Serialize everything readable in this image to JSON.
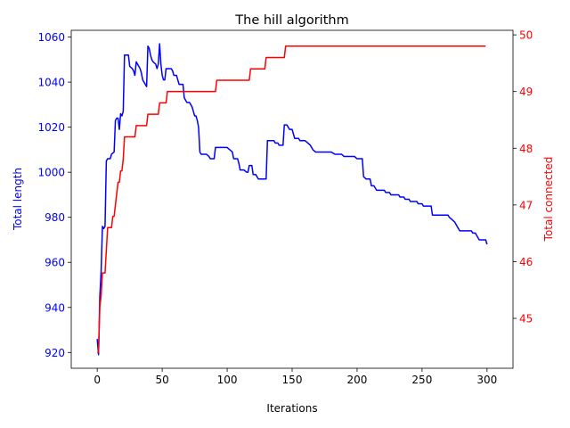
{
  "chart_data": {
    "type": "line",
    "title": "The hill algorithm",
    "xlabel": "Iterations",
    "xlim": [
      -20,
      320
    ],
    "xticks": [
      0,
      50,
      100,
      150,
      200,
      250,
      300
    ],
    "grid": false,
    "axes": {
      "left": {
        "label": "Total length",
        "color": "#0000ff",
        "ylim": [
          913,
          1063
        ],
        "ticks": [
          920,
          940,
          960,
          980,
          1000,
          1020,
          1040,
          1060
        ]
      },
      "right": {
        "label": "Total connected",
        "color": "#ff0000",
        "ylim": [
          44.12,
          50.08
        ],
        "ticks": [
          45,
          46,
          47,
          48,
          49,
          50
        ]
      }
    },
    "series": [
      {
        "axis": "left",
        "color": "#0000ff",
        "points": [
          [
            0,
            926
          ],
          [
            1,
            919
          ],
          [
            2,
            945
          ],
          [
            3,
            956
          ],
          [
            4,
            976
          ],
          [
            5,
            975
          ],
          [
            6,
            976
          ],
          [
            7,
            1005
          ],
          [
            8,
            1006
          ],
          [
            10,
            1006
          ],
          [
            11,
            1008
          ],
          [
            13,
            1009
          ],
          [
            14,
            1023
          ],
          [
            15,
            1024
          ],
          [
            16,
            1024
          ],
          [
            17,
            1019
          ],
          [
            18,
            1026
          ],
          [
            19,
            1025
          ],
          [
            20,
            1027
          ],
          [
            21,
            1052
          ],
          [
            22,
            1052
          ],
          [
            24,
            1052
          ],
          [
            25,
            1047
          ],
          [
            27,
            1046
          ],
          [
            28,
            1045
          ],
          [
            29,
            1043
          ],
          [
            30,
            1049
          ],
          [
            31,
            1048
          ],
          [
            32,
            1047
          ],
          [
            33,
            1046
          ],
          [
            34,
            1044
          ],
          [
            35,
            1041
          ],
          [
            36,
            1040
          ],
          [
            37,
            1039
          ],
          [
            38,
            1038
          ],
          [
            39,
            1056
          ],
          [
            40,
            1055
          ],
          [
            41,
            1052
          ],
          [
            42,
            1050
          ],
          [
            43,
            1049
          ],
          [
            45,
            1048
          ],
          [
            46,
            1046
          ],
          [
            47,
            1048
          ],
          [
            48,
            1057
          ],
          [
            49,
            1048
          ],
          [
            50,
            1043
          ],
          [
            51,
            1041
          ],
          [
            52,
            1041
          ],
          [
            53,
            1046
          ],
          [
            55,
            1046
          ],
          [
            57,
            1046
          ],
          [
            58,
            1045
          ],
          [
            59,
            1043
          ],
          [
            61,
            1043
          ],
          [
            62,
            1041
          ],
          [
            63,
            1039
          ],
          [
            66,
            1039
          ],
          [
            67,
            1033
          ],
          [
            68,
            1032
          ],
          [
            69,
            1031
          ],
          [
            71,
            1031
          ],
          [
            72,
            1030
          ],
          [
            73,
            1029
          ],
          [
            74,
            1027
          ],
          [
            75,
            1025
          ],
          [
            76,
            1025
          ],
          [
            77,
            1023
          ],
          [
            78,
            1020
          ],
          [
            79,
            1009
          ],
          [
            80,
            1008
          ],
          [
            82,
            1008
          ],
          [
            84,
            1008
          ],
          [
            86,
            1007
          ],
          [
            87,
            1006
          ],
          [
            90,
            1006
          ],
          [
            91,
            1011
          ],
          [
            100,
            1011
          ],
          [
            102,
            1010
          ],
          [
            104,
            1009
          ],
          [
            105,
            1006
          ],
          [
            108,
            1006
          ],
          [
            109,
            1004
          ],
          [
            110,
            1001
          ],
          [
            113,
            1001
          ],
          [
            115,
            1000
          ],
          [
            116,
            1000
          ],
          [
            117,
            1003
          ],
          [
            119,
            1003
          ],
          [
            120,
            999
          ],
          [
            122,
            999
          ],
          [
            123,
            998
          ],
          [
            124,
            997
          ],
          [
            130,
            997
          ],
          [
            131,
            1014
          ],
          [
            133,
            1014
          ],
          [
            136,
            1014
          ],
          [
            137,
            1013
          ],
          [
            139,
            1013
          ],
          [
            140,
            1012
          ],
          [
            143,
            1012
          ],
          [
            144,
            1021
          ],
          [
            146,
            1021
          ],
          [
            147,
            1020
          ],
          [
            148,
            1019
          ],
          [
            150,
            1019
          ],
          [
            151,
            1017
          ],
          [
            152,
            1015
          ],
          [
            155,
            1015
          ],
          [
            156,
            1014
          ],
          [
            160,
            1014
          ],
          [
            162,
            1013
          ],
          [
            164,
            1012
          ],
          [
            165,
            1011
          ],
          [
            166,
            1010
          ],
          [
            168,
            1009
          ],
          [
            174,
            1009
          ],
          [
            176,
            1009
          ],
          [
            180,
            1009
          ],
          [
            183,
            1008
          ],
          [
            188,
            1008
          ],
          [
            190,
            1007
          ],
          [
            197,
            1007
          ],
          [
            198,
            1007
          ],
          [
            200,
            1006
          ],
          [
            204,
            1006
          ],
          [
            205,
            998
          ],
          [
            207,
            997
          ],
          [
            210,
            997
          ],
          [
            211,
            994
          ],
          [
            213,
            994
          ],
          [
            214,
            993
          ],
          [
            215,
            992
          ],
          [
            221,
            992
          ],
          [
            222,
            991
          ],
          [
            225,
            991
          ],
          [
            226,
            990
          ],
          [
            232,
            990
          ],
          [
            233,
            989
          ],
          [
            236,
            989
          ],
          [
            237,
            988
          ],
          [
            240,
            988
          ],
          [
            241,
            987
          ],
          [
            246,
            987
          ],
          [
            247,
            986
          ],
          [
            250,
            986
          ],
          [
            251,
            985
          ],
          [
            257,
            985
          ],
          [
            258,
            981
          ],
          [
            270,
            981
          ],
          [
            271,
            980
          ],
          [
            273,
            979
          ],
          [
            275,
            978
          ],
          [
            276,
            977
          ],
          [
            277,
            976
          ],
          [
            278,
            975
          ],
          [
            279,
            974
          ],
          [
            288,
            974
          ],
          [
            289,
            973
          ],
          [
            291,
            973
          ],
          [
            292,
            972
          ],
          [
            293,
            971
          ],
          [
            294,
            970
          ],
          [
            297,
            970
          ],
          [
            299,
            970
          ],
          [
            300,
            968
          ]
        ]
      },
      {
        "axis": "right",
        "color": "#ff0000",
        "points": [
          [
            0,
            44.4
          ],
          [
            1,
            44.4
          ],
          [
            2,
            45.2
          ],
          [
            3,
            45.4
          ],
          [
            4,
            45.8
          ],
          [
            6,
            45.8
          ],
          [
            7,
            46.2
          ],
          [
            8,
            46.6
          ],
          [
            11,
            46.6
          ],
          [
            12,
            46.8
          ],
          [
            13,
            46.8
          ],
          [
            14,
            47.0
          ],
          [
            15,
            47.2
          ],
          [
            16,
            47.4
          ],
          [
            17,
            47.4
          ],
          [
            18,
            47.6
          ],
          [
            19,
            47.6
          ],
          [
            20,
            47.8
          ],
          [
            21,
            48.2
          ],
          [
            29,
            48.2
          ],
          [
            30,
            48.4
          ],
          [
            38,
            48.4
          ],
          [
            39,
            48.6
          ],
          [
            47,
            48.6
          ],
          [
            48,
            48.8
          ],
          [
            53,
            48.8
          ],
          [
            54,
            49.0
          ],
          [
            91,
            49.0
          ],
          [
            92,
            49.2
          ],
          [
            117,
            49.2
          ],
          [
            118,
            49.4
          ],
          [
            129,
            49.4
          ],
          [
            130,
            49.6
          ],
          [
            144,
            49.6
          ],
          [
            145,
            49.8
          ],
          [
            299,
            49.8
          ]
        ]
      }
    ]
  }
}
